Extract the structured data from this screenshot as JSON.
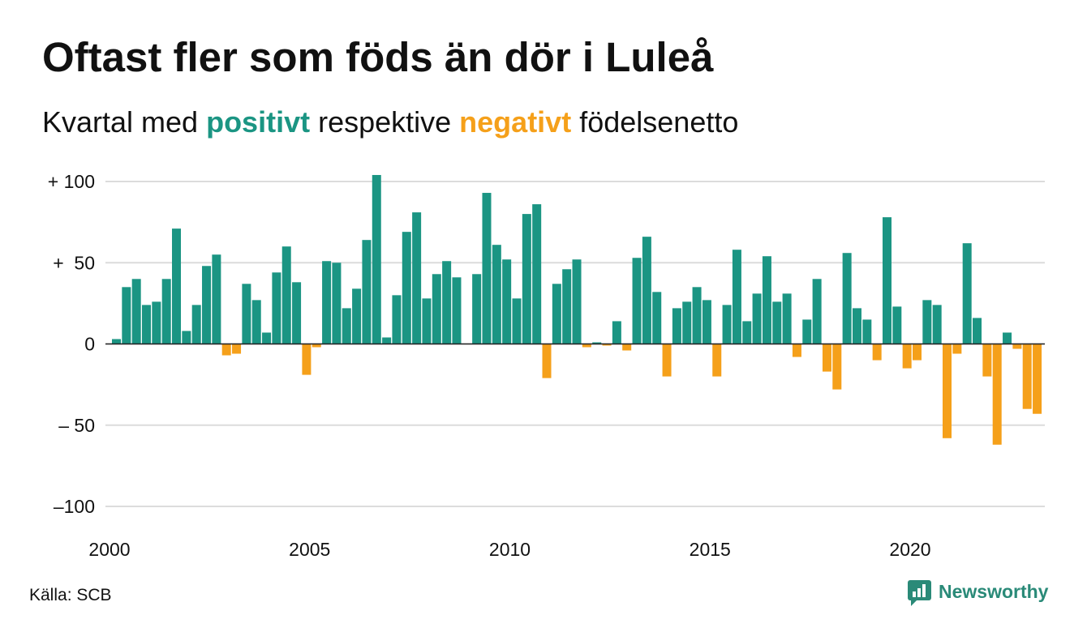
{
  "chart_data": {
    "type": "bar",
    "title": "Oftast fler som föds än dör i Luleå",
    "subtitle": [
      {
        "text": "Kvartal med "
      },
      {
        "text": "positivt",
        "color": "#1b9583"
      },
      {
        "text": " respektive "
      },
      {
        "text": "negativt",
        "color": "#f5a01a"
      },
      {
        "text": " födelsenetto"
      }
    ],
    "colors": {
      "positive": "#1b9583",
      "negative": "#f5a01a"
    },
    "x": [
      "2000-Q1",
      "2000-Q2",
      "2000-Q3",
      "2000-Q4",
      "2001-Q1",
      "2001-Q2",
      "2001-Q3",
      "2001-Q4",
      "2002-Q1",
      "2002-Q2",
      "2002-Q3",
      "2002-Q4",
      "2003-Q1",
      "2003-Q2",
      "2003-Q3",
      "2003-Q4",
      "2004-Q1",
      "2004-Q2",
      "2004-Q3",
      "2004-Q4",
      "2005-Q1",
      "2005-Q2",
      "2005-Q3",
      "2005-Q4",
      "2006-Q1",
      "2006-Q2",
      "2006-Q3",
      "2006-Q4",
      "2007-Q1",
      "2007-Q2",
      "2007-Q3",
      "2007-Q4",
      "2008-Q1",
      "2008-Q2",
      "2008-Q3",
      "2008-Q4",
      "2009-Q1",
      "2009-Q2",
      "2009-Q3",
      "2009-Q4",
      "2010-Q1",
      "2010-Q2",
      "2010-Q3",
      "2010-Q4",
      "2011-Q1",
      "2011-Q2",
      "2011-Q3",
      "2011-Q4",
      "2012-Q1",
      "2012-Q2",
      "2012-Q3",
      "2012-Q4",
      "2013-Q1",
      "2013-Q2",
      "2013-Q3",
      "2013-Q4",
      "2014-Q1",
      "2014-Q2",
      "2014-Q3",
      "2014-Q4",
      "2015-Q1",
      "2015-Q2",
      "2015-Q3",
      "2015-Q4",
      "2016-Q1",
      "2016-Q2",
      "2016-Q3",
      "2016-Q4",
      "2017-Q1",
      "2017-Q2",
      "2017-Q3",
      "2017-Q4",
      "2018-Q1",
      "2018-Q2",
      "2018-Q3",
      "2018-Q4",
      "2019-Q1",
      "2019-Q2",
      "2019-Q3",
      "2019-Q4",
      "2020-Q1",
      "2020-Q2",
      "2020-Q3",
      "2020-Q4",
      "2021-Q1",
      "2021-Q2",
      "2021-Q3",
      "2021-Q4",
      "2022-Q1",
      "2022-Q2",
      "2022-Q3",
      "2022-Q4",
      "2023-Q1"
    ],
    "values": [
      3,
      35,
      40,
      24,
      26,
      40,
      71,
      8,
      24,
      48,
      55,
      -7,
      -6,
      37,
      27,
      7,
      44,
      60,
      38,
      -19,
      -2,
      51,
      50,
      22,
      34,
      64,
      104,
      4,
      30,
      69,
      81,
      28,
      43,
      51,
      41,
      0,
      43,
      93,
      61,
      52,
      28,
      80,
      86,
      -21,
      37,
      46,
      52,
      -2,
      1,
      -1,
      14,
      -4,
      53,
      66,
      32,
      -20,
      22,
      26,
      35,
      27,
      -20,
      24,
      58,
      14,
      31,
      54,
      26,
      31,
      -8,
      15,
      40,
      -17,
      -28,
      56,
      22,
      15,
      -10,
      78,
      23,
      -15,
      -10,
      27,
      24,
      -58,
      -6,
      62,
      16,
      -20,
      -62,
      7,
      -3,
      -40,
      -43
    ],
    "x_ticks": [
      "2000",
      "2005",
      "2010",
      "2015",
      "2020"
    ],
    "y_ticks": [
      100,
      50,
      0,
      -50,
      -100
    ],
    "y_tick_labels": [
      "+ 100",
      "+  50",
      "0",
      "– 50",
      "–100"
    ],
    "ylim": [
      -100,
      100
    ],
    "xlabel": "",
    "ylabel": "",
    "grid": true,
    "legend": "none"
  },
  "source": "Källa: SCB",
  "logo": {
    "text": "Newsworthy",
    "icon": "speech-bubble-bar-chart-icon",
    "color": "#2a8a78"
  }
}
